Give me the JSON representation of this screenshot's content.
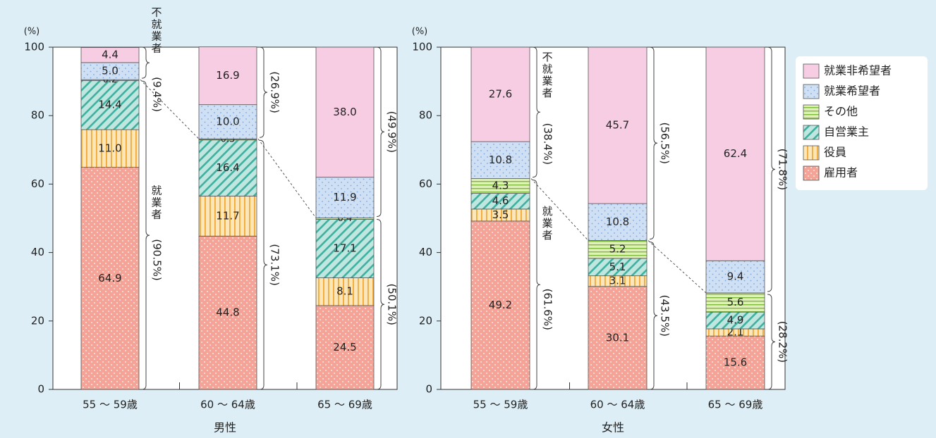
{
  "chart_data": [
    {
      "type": "bar",
      "stacked": true,
      "xlabel": "男性",
      "ylabel": "(%)",
      "ylim": [
        0,
        100
      ],
      "yticks": [
        0,
        20,
        40,
        60,
        80,
        100
      ],
      "categories": [
        "55 ～ 59歳",
        "60 ～ 64歳",
        "65 ～ 69歳"
      ],
      "series": [
        {
          "name": "雇用者",
          "values": [
            64.9,
            44.8,
            24.5
          ]
        },
        {
          "name": "役員",
          "values": [
            11.0,
            11.7,
            8.1
          ]
        },
        {
          "name": "自営業主",
          "values": [
            14.4,
            16.4,
            17.1
          ]
        },
        {
          "name": "その他",
          "values": [
            0.2,
            0.3,
            0.4
          ]
        },
        {
          "name": "就業希望者",
          "values": [
            5.0,
            10.0,
            11.9
          ]
        },
        {
          "name": "就業非希望者",
          "values": [
            4.4,
            16.9,
            38.0
          ]
        }
      ],
      "brackets": {
        "employed": [
          "(90.5%)",
          "(73.1%)",
          "(50.1%)"
        ],
        "not_employed": [
          "(9.4%)",
          "(26.9%)",
          "(49.9%)"
        ],
        "employed_label": "就業者",
        "not_employed_label": "不就業者"
      }
    },
    {
      "type": "bar",
      "stacked": true,
      "xlabel": "女性",
      "ylabel": "(%)",
      "ylim": [
        0,
        100
      ],
      "yticks": [
        0,
        20,
        40,
        60,
        80,
        100
      ],
      "categories": [
        "55 ～ 59歳",
        "60 ～ 64歳",
        "65 ～ 69歳"
      ],
      "series": [
        {
          "name": "雇用者",
          "values": [
            49.2,
            30.1,
            15.6
          ]
        },
        {
          "name": "役員",
          "values": [
            3.5,
            3.1,
            2.1
          ]
        },
        {
          "name": "自営業主",
          "values": [
            4.6,
            5.1,
            4.9
          ]
        },
        {
          "name": "その他",
          "values": [
            4.3,
            5.2,
            5.6
          ]
        },
        {
          "name": "就業希望者",
          "values": [
            10.8,
            10.8,
            9.4
          ]
        },
        {
          "name": "就業非希望者",
          "values": [
            27.6,
            45.7,
            62.4
          ]
        }
      ],
      "brackets": {
        "employed": [
          "(61.6%)",
          "(43.5%)",
          "(28.2%)"
        ],
        "not_employed": [
          "(38.4%)",
          "(56.5%)",
          "(71.8%)"
        ],
        "employed_label": "就業者",
        "not_employed_label": "不就業者"
      }
    }
  ],
  "legend": {
    "placement": "right",
    "items": [
      {
        "name": "就業非希望者",
        "color": "#f6cde3"
      },
      {
        "name": "就業希望者",
        "color": "#cfe0f5"
      },
      {
        "name": "その他",
        "color": "#cde89a"
      },
      {
        "name": "自営業主",
        "color": "#a9ddd4"
      },
      {
        "name": "役員",
        "color": "#fde0a6"
      },
      {
        "name": "雇用者",
        "color": "#f5a396"
      }
    ]
  },
  "colors": {
    "background": "#ddeef6",
    "plot": "#ffffff",
    "雇用者": "#f5a396",
    "役員": "#fde0a6",
    "自営業主": "#a9ddd4",
    "その他": "#cde89a",
    "就業希望者": "#cfe0f5",
    "就業非希望者": "#f6cde3"
  }
}
